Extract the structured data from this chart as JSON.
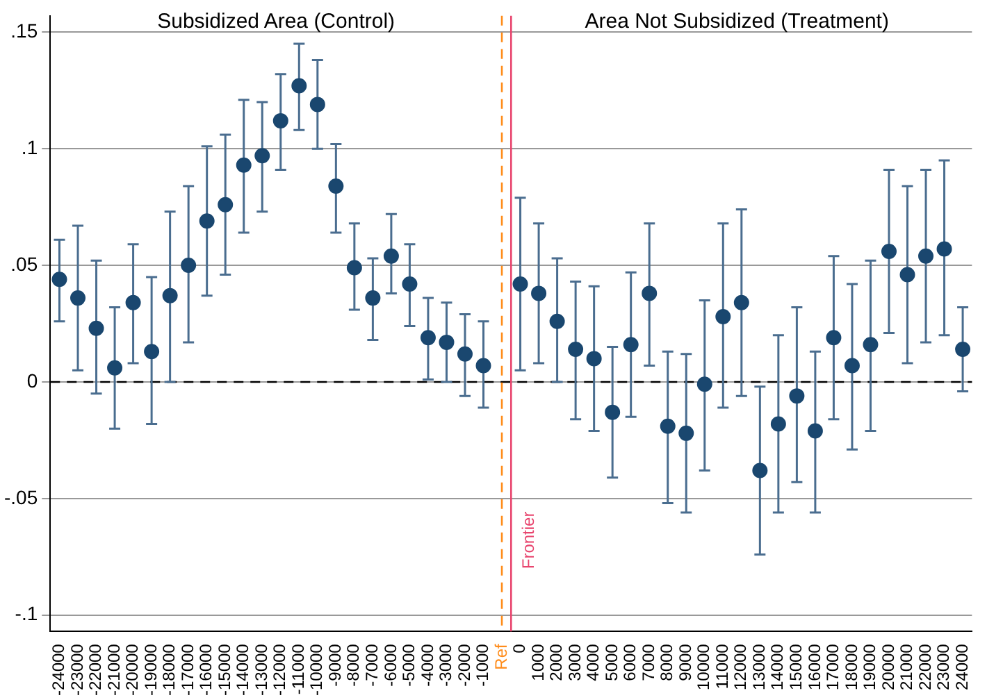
{
  "chart_data": {
    "type": "scatter",
    "annotations": [
      "Subsidized Area (Control)",
      "Area Not Subsidized (Treatment)"
    ],
    "categories": [
      "-24000",
      "-23000",
      "-22000",
      "-21000",
      "-20000",
      "-19000",
      "-18000",
      "-17000",
      "-16000",
      "-15000",
      "-14000",
      "-13000",
      "-12000",
      "-11000",
      "-10000",
      "-9000",
      "-8000",
      "-7000",
      "-6000",
      "-5000",
      "-4000",
      "-3000",
      "-2000",
      "-1000",
      "Ref",
      "0",
      "1000",
      "2000",
      "3000",
      "4000",
      "5000",
      "6000",
      "7000",
      "8000",
      "9000",
      "10000",
      "11000",
      "12000",
      "13000",
      "14000",
      "15000",
      "16000",
      "17000",
      "18000",
      "19000",
      "20000",
      "21000",
      "22000",
      "23000",
      "24000"
    ],
    "series": [
      {
        "color": "#1a476f",
        "values": [
          0.044,
          0.036,
          0.023,
          0.006,
          0.034,
          0.013,
          0.037,
          0.05,
          0.069,
          0.076,
          0.093,
          0.097,
          0.112,
          0.127,
          0.119,
          0.084,
          0.049,
          0.036,
          0.054,
          0.042,
          0.019,
          0.017,
          0.012,
          0.007,
          null,
          0.042,
          0.038,
          0.026,
          0.014,
          0.01,
          -0.013,
          0.016,
          0.038,
          -0.019,
          -0.022,
          -0.001,
          0.028,
          0.034,
          -0.038,
          -0.018,
          -0.006,
          -0.021,
          0.019,
          0.007,
          0.016,
          0.056,
          0.046,
          0.054,
          0.057,
          0.014
        ],
        "errors": [
          [
            0.026,
            0.061
          ],
          [
            0.005,
            0.067
          ],
          [
            -0.005,
            0.052
          ],
          [
            -0.02,
            0.032
          ],
          [
            0.008,
            0.059
          ],
          [
            -0.018,
            0.045
          ],
          [
            0.0,
            0.073
          ],
          [
            0.017,
            0.084
          ],
          [
            0.037,
            0.101
          ],
          [
            0.046,
            0.106
          ],
          [
            0.064,
            0.121
          ],
          [
            0.073,
            0.12
          ],
          [
            0.091,
            0.132
          ],
          [
            0.108,
            0.145
          ],
          [
            0.1,
            0.138
          ],
          [
            0.064,
            0.102
          ],
          [
            0.031,
            0.068
          ],
          [
            0.018,
            0.053
          ],
          [
            0.038,
            0.072
          ],
          [
            0.024,
            0.059
          ],
          [
            0.001,
            0.036
          ],
          [
            0.0,
            0.034
          ],
          [
            -0.006,
            0.029
          ],
          [
            -0.011,
            0.026
          ],
          null,
          [
            0.005,
            0.079
          ],
          [
            0.008,
            0.068
          ],
          [
            0.0,
            0.053
          ],
          [
            -0.016,
            0.043
          ],
          [
            -0.021,
            0.041
          ],
          [
            -0.041,
            0.015
          ],
          [
            -0.015,
            0.047
          ],
          [
            0.007,
            0.068
          ],
          [
            -0.052,
            0.013
          ],
          [
            -0.056,
            0.012
          ],
          [
            -0.038,
            0.035
          ],
          [
            -0.011,
            0.068
          ],
          [
            -0.006,
            0.074
          ],
          [
            -0.074,
            -0.002
          ],
          [
            -0.056,
            0.02
          ],
          [
            -0.043,
            0.032
          ],
          [
            -0.056,
            0.013
          ],
          [
            -0.016,
            0.054
          ],
          [
            -0.029,
            0.042
          ],
          [
            -0.021,
            0.052
          ],
          [
            0.021,
            0.091
          ],
          [
            0.008,
            0.084
          ],
          [
            0.017,
            0.091
          ],
          [
            0.02,
            0.095
          ],
          [
            -0.004,
            0.032
          ]
        ]
      }
    ],
    "ylim": [
      -0.107,
      0.157
    ],
    "yticks": [
      {
        "value": -0.1,
        "label": "-.1"
      },
      {
        "value": -0.05,
        "label": "-.05"
      },
      {
        "value": 0,
        "label": "0"
      },
      {
        "value": 0.05,
        "label": ".05"
      },
      {
        "value": 0.1,
        "label": ".1"
      },
      {
        "value": 0.15,
        "label": ".15"
      }
    ],
    "ref_lines": [
      {
        "axis": "y",
        "value": 0,
        "color": "#000000",
        "line_style": "dashed"
      },
      {
        "axis": "x",
        "value": "Ref",
        "color": "#ff8c1a",
        "line_style": "dashed"
      },
      {
        "axis": "x",
        "value": "0",
        "label": "Frontier",
        "color": "#e8456e",
        "line_style": "solid"
      }
    ],
    "grid": "y",
    "legend": false,
    "marker": "circle"
  }
}
